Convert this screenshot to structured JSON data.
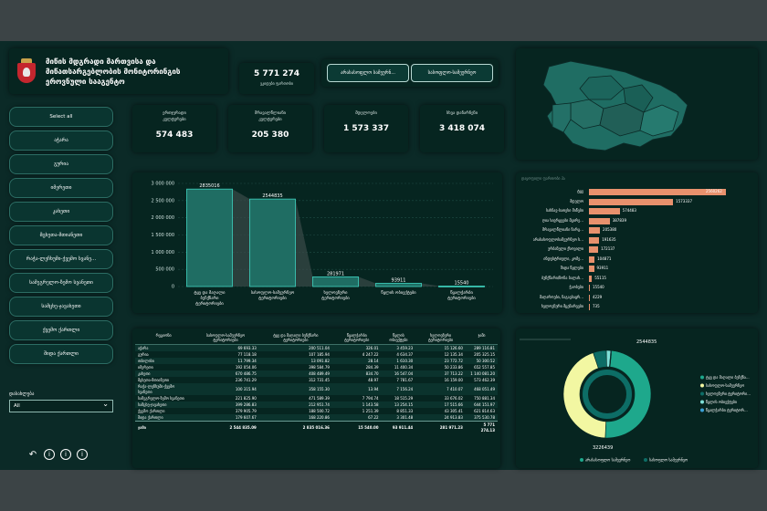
{
  "header": {
    "title_line1": "მიწის მდგრადი მართვისა და",
    "title_line2": "მიწათსარგებლობის მონიტორინგის",
    "title_line3": "ეროვნული სააგენტო"
  },
  "kpi_top": {
    "value": "5 771 274",
    "label": "ვკიდები ფართობი"
  },
  "toggles": [
    {
      "label": "არასასოფლო სამეურნ..."
    },
    {
      "label": "სასოფლო-სამეურნეო"
    }
  ],
  "regions": [
    "Select all",
    "აჭარა",
    "გურია",
    "იმერეთი",
    "კახეთი",
    "მცხეთა-მთიანეთი",
    "რაჭა-ლეჩხუმი-ქვემო სვანე...",
    "სამეგრელო-ზემო სვანეთი",
    "სამცხე-ჯავახეთი",
    "ქვემო ქართლი",
    "შიდა ქართლი"
  ],
  "kpis": [
    {
      "label1": "ერთჯერადი",
      "label2": "კულტურები",
      "value": "574 483"
    },
    {
      "label1": "მრავალწლიანი",
      "label2": "კულტურები",
      "value": "205 380"
    },
    {
      "label1": "მდელოები",
      "label2": "",
      "value": "1 573 337"
    },
    {
      "label1": "სხვა დანარჩენი",
      "label2": "",
      "value": "3 418 074"
    }
  ],
  "chart_data": {
    "type": "area",
    "categories": [
      "ტყე და მაღალი ბუჩქნარი ტერიტორიები",
      "სასოფლო-სამეურნეო ტერიტორიები",
      "ხელოვნური ტერიტორიები",
      "წყლის ობიექტები",
      "წყალჭარბი ტერიტორიები"
    ],
    "values": [
      2835016,
      2544835,
      281971,
      93911,
      15540
    ],
    "ylim": [
      0,
      3000000
    ],
    "yticks": [
      "3 000 000",
      "2 500 000",
      "2 000 000",
      "1 500 000",
      "1 000 000",
      "500 000",
      "0"
    ]
  },
  "ranking": {
    "header": "დაყოფილი ფართობი ჰა",
    "rows": [
      {
        "label": "ტყე",
        "value": "2560262",
        "n": 2560262
      },
      {
        "label": "მდელო",
        "value": "1573337",
        "n": 1573337
      },
      {
        "label": "სახნავ-სათესი მიწები",
        "value": "574483",
        "n": 574483
      },
      {
        "label": "ღია სივრცეები მცირე...",
        "value": "387839",
        "n": 387839
      },
      {
        "label": "მრავალწლიანი ნარგ...",
        "value": "205380",
        "n": 205380
      },
      {
        "label": "არასასოფლოსამეურნეო ს...",
        "value": "191635",
        "n": 191635
      },
      {
        "label": "ურბანული ქსოვილი",
        "value": "172137",
        "n": 172137
      },
      {
        "label": "ინდუსტრიული, კომე...",
        "value": "104871",
        "n": 104871
      },
      {
        "label": "შიდა წყლები",
        "value": "93911",
        "n": 93911
      },
      {
        "label": "ბუჩქნარი/ზონა ბალახ...",
        "value": "55115",
        "n": 55115
      },
      {
        "label": "ჭაობები",
        "value": "15540",
        "n": 15540
      },
      {
        "label": "მაღაროები, ნაგავსაყრ...",
        "value": "4229",
        "n": 4229
      },
      {
        "label": "ხელოვნური მცენარეები",
        "value": "735",
        "n": 735
      }
    ]
  },
  "table": {
    "headers": [
      "რეგიონი",
      "სასოფლო-სამეურნეო ტერიტორიები",
      "ტყე და მაღალი ბუჩქნარი ტერიტორიები",
      "წყალჭარბი ტერიტორიები",
      "წყლის ობიექტები",
      "ხელოვნური ტერიტორიები",
      "ჯამი"
    ],
    "rows": [
      [
        "აჭარა",
        "69 693.33",
        "200 511.04",
        "326.01",
        "3 459.23",
        "15 126.60",
        "289 116.81"
      ],
      [
        "გურია",
        "77 118.18",
        "107 185.94",
        "4 247.22",
        "4 634.37",
        "12 135.34",
        "205 325.15"
      ],
      [
        "თბილისი",
        "11 799.34",
        "13 091.82",
        "28.14",
        "1 610.30",
        "23 772.72",
        "50 300.52"
      ],
      [
        "იმერეთი",
        "192 054.06",
        "398 584.79",
        "284.39",
        "11 400.34",
        "50 233.86",
        "652 557.85"
      ],
      [
        "კახეთი",
        "670 486.75",
        "408 489.49",
        "834.70",
        "16 547.04",
        "37 713.22",
        "1 140 081.20"
      ],
      [
        "მცხეთა-მთიანეთი",
        "236 741.29",
        "312 731.45",
        "48.97",
        "7 781.67",
        "16 159.00",
        "573 462.39"
      ],
      [
        "რაჭა-ლეჩხუმი-ქვემო სვანეთი",
        "100 315.94",
        "358 155.30",
        "13.94",
        "7 156.24",
        "7 410.07",
        "468 051.49"
      ],
      [
        "სამეგრელო-ზემო სვანეთი",
        "221 825.90",
        "471 589.39",
        "7 794.74",
        "18 515.29",
        "33 676.02",
        "750 881.34"
      ],
      [
        "სამცხე-ჯავახეთი",
        "399 286.83",
        "212 951.74",
        "1 143.58",
        "13 254.15",
        "17 515.66",
        "644 151.97"
      ],
      [
        "ქვემო ქართლი",
        "379 905.79",
        "188 500.72",
        "1 251.39",
        "8 851.33",
        "43 305.41",
        "621 814.63"
      ],
      [
        "შიდა ქართლი",
        "179 607.67",
        "168 220.86",
        "67.22",
        "3 301.48",
        "24 913.83",
        "375 530.78"
      ]
    ],
    "total": [
      "ჯამი",
      "2 544 835.09",
      "2 835 016.36",
      "15 540.00",
      "93 911.44",
      "281 971.23",
      "5 771 274.13"
    ]
  },
  "donut": {
    "top_label": "2544835",
    "bottom_label": "3226439",
    "segments": [
      {
        "name": "ტყე და მაღალი ბუჩქნა...",
        "value": 2835016,
        "color": "#1ea88c"
      },
      {
        "name": "სასოფლო-სამეურნეო",
        "value": 2544835,
        "color": "#f2f7a2"
      },
      {
        "name": "ხელოვნური ტერიტორი...",
        "value": 281971,
        "color": "#0d6d66"
      },
      {
        "name": "წყლის ობიექტები",
        "value": 93911,
        "color": "#7ee0d8"
      },
      {
        "name": "წყალჭარბი ტერიტორ...",
        "value": 15540,
        "color": "#3aa0d6"
      }
    ],
    "bottom_legend": [
      "არასასოფლო სამეურნეო",
      "სასოფლო სამეურნეო"
    ],
    "bottom_legend_colors": [
      "#1ea88c",
      "#0d6d66"
    ]
  },
  "filter": {
    "label": "დასახლება",
    "selected": "All"
  },
  "colors": {
    "accent_bar": "#1f6d63",
    "accent_bar_border": "#3fd3c0",
    "rank_bar": "#e8916d"
  }
}
